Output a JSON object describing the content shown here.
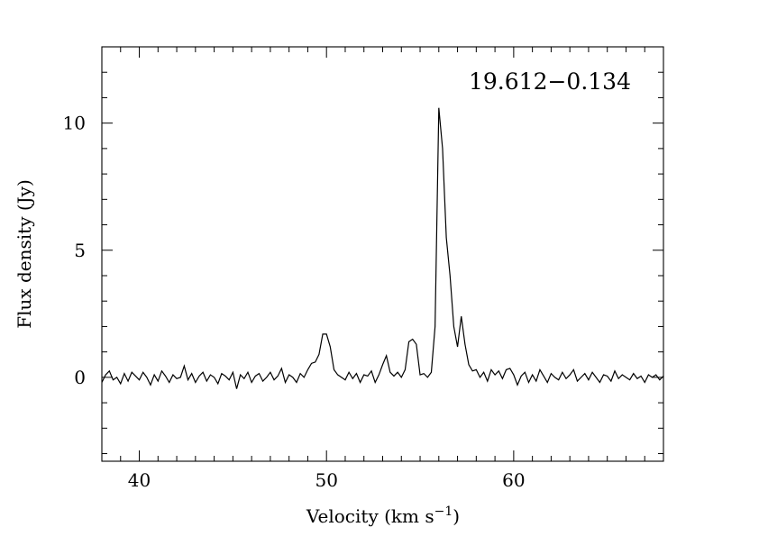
{
  "chart_data": {
    "type": "line",
    "title": "19.612−0.134",
    "xlabel": "Velocity (km s",
    "xlabel_sup": "−1",
    "xlabel_close": ")",
    "ylabel": "Flux density (Jy)",
    "xlim": [
      38,
      68
    ],
    "ylim": [
      -3.3,
      13
    ],
    "x_ticks": [
      40,
      50,
      60
    ],
    "x_tick_labels": [
      "40",
      "50",
      "60"
    ],
    "y_ticks": [
      0,
      5,
      10
    ],
    "y_tick_labels": [
      "0",
      "5",
      "10"
    ],
    "grid": false,
    "line_color": "#000000",
    "features": [
      {
        "center": 50.2,
        "peak": 1.7
      },
      {
        "center": 53.2,
        "peak": 0.8
      },
      {
        "center": 54.9,
        "peak": 1.5
      },
      {
        "center": 56.45,
        "peak": 10.7
      },
      {
        "center": 57.0,
        "peak": 4.0
      },
      {
        "center": 57.4,
        "peak": 2.4
      }
    ],
    "series": [
      {
        "x": [
          38.0,
          38.2,
          38.4,
          38.6,
          38.8,
          39.0,
          39.2,
          39.4,
          39.6,
          39.8,
          40.0,
          40.2,
          40.4,
          40.6,
          40.8,
          41.0,
          41.2,
          41.4,
          41.6,
          41.8,
          42.0,
          42.2,
          42.4,
          42.6,
          42.8,
          43.0,
          43.2,
          43.4,
          43.6,
          43.8,
          44.0,
          44.2,
          44.4,
          44.6,
          44.8,
          45.0,
          45.2,
          45.4,
          45.6,
          45.8,
          46.0,
          46.2,
          46.4,
          46.6,
          46.8,
          47.0,
          47.2,
          47.4,
          47.6,
          47.8,
          48.0,
          48.2,
          48.4,
          48.6,
          48.8,
          49.0,
          49.2,
          49.4,
          49.6,
          49.8,
          50.0,
          50.2,
          50.4,
          50.6,
          50.8,
          51.0,
          51.2,
          51.4,
          51.6,
          51.8,
          52.0,
          52.2,
          52.4,
          52.6,
          52.8,
          53.0,
          53.2,
          53.4,
          53.6,
          53.8,
          54.0,
          54.2,
          54.4,
          54.6,
          54.8,
          55.0,
          55.2,
          55.4,
          55.6,
          55.8,
          56.0,
          56.2,
          56.4,
          56.6,
          56.8,
          57.0,
          57.2,
          57.4,
          57.6,
          57.8,
          58.0,
          58.2,
          58.4,
          58.6,
          58.8,
          59.0,
          59.2,
          59.4,
          59.6,
          59.8,
          60.0,
          60.2,
          60.4,
          60.6,
          60.8,
          61.0,
          61.2,
          61.4,
          61.6,
          61.8,
          62.0,
          62.2,
          62.4,
          62.6,
          62.8,
          63.0,
          63.2,
          63.4,
          63.6,
          63.8,
          64.0,
          64.2,
          64.4,
          64.6,
          64.8,
          65.0,
          65.2,
          65.4,
          65.6,
          65.8,
          66.0,
          66.2,
          66.4,
          66.6,
          66.8,
          67.0,
          67.2,
          67.4,
          67.6,
          67.8,
          68.0
        ],
        "y": [
          -0.2,
          0.1,
          0.25,
          -0.1,
          0.0,
          -0.25,
          0.15,
          -0.15,
          0.2,
          0.05,
          -0.1,
          0.2,
          0.0,
          -0.3,
          0.1,
          -0.15,
          0.25,
          0.05,
          -0.2,
          0.1,
          -0.05,
          0.0,
          0.45,
          -0.1,
          0.15,
          -0.2,
          0.05,
          0.2,
          -0.15,
          0.1,
          0.0,
          -0.25,
          0.15,
          0.05,
          -0.1,
          0.2,
          -0.45,
          0.1,
          -0.05,
          0.2,
          -0.2,
          0.05,
          0.15,
          -0.15,
          0.0,
          0.2,
          -0.1,
          0.05,
          0.35,
          -0.2,
          0.1,
          0.0,
          -0.2,
          0.15,
          0.0,
          0.3,
          0.55,
          0.6,
          0.9,
          1.7,
          1.7,
          1.2,
          0.3,
          0.1,
          0.0,
          -0.1,
          0.2,
          -0.05,
          0.15,
          -0.2,
          0.1,
          0.05,
          0.25,
          -0.2,
          0.1,
          0.5,
          0.85,
          0.2,
          0.05,
          0.2,
          0.0,
          0.3,
          1.4,
          1.5,
          1.3,
          0.1,
          0.15,
          0.0,
          0.2,
          2.0,
          10.6,
          9.0,
          5.5,
          4.0,
          2.0,
          1.2,
          2.4,
          1.3,
          0.5,
          0.25,
          0.3,
          0.0,
          0.2,
          -0.15,
          0.3,
          0.1,
          0.25,
          -0.05,
          0.3,
          0.35,
          0.1,
          -0.3,
          0.05,
          0.2,
          -0.2,
          0.1,
          -0.15,
          0.3,
          0.05,
          -0.2,
          0.15,
          0.0,
          -0.1,
          0.2,
          -0.05,
          0.1,
          0.3,
          -0.15,
          0.0,
          0.15,
          -0.1,
          0.2,
          0.0,
          -0.2,
          0.1,
          0.05,
          -0.15,
          0.25,
          -0.05,
          0.1,
          0.0,
          -0.1,
          0.15,
          -0.05,
          0.05,
          -0.2,
          0.1,
          0.0,
          0.1,
          -0.1,
          0.05
        ]
      }
    ]
  }
}
